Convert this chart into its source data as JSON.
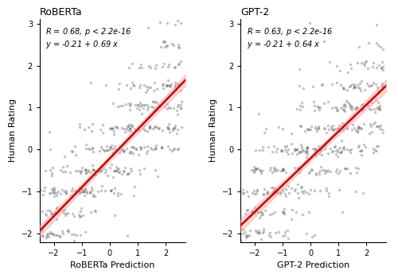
{
  "panel1": {
    "title": "RoBERTa",
    "xlabel": "RoBERTa Prediction",
    "ylabel": "Human Rating",
    "R": 0.68,
    "p": "< 2.2e-16",
    "intercept": -0.21,
    "slope": 0.69,
    "xlim": [
      -2.5,
      2.7
    ],
    "ylim": [
      -2.2,
      3.1
    ],
    "xticks": [
      -2,
      -1,
      0,
      1,
      2
    ],
    "yticks": [
      -2,
      -1,
      0,
      1,
      2,
      3
    ]
  },
  "panel2": {
    "title": "GPT-2",
    "xlabel": "GPT-2 Prediction",
    "ylabel": "Human Rating",
    "R": 0.63,
    "p": "< 2.2e-16",
    "intercept": -0.21,
    "slope": 0.64,
    "xlim": [
      -2.5,
      2.7
    ],
    "ylim": [
      -2.2,
      3.1
    ],
    "xticks": [
      -2,
      -1,
      0,
      1,
      2
    ],
    "yticks": [
      -2,
      -1,
      0,
      1,
      2,
      3
    ]
  },
  "n_points": 500,
  "seed1": 42,
  "seed2": 99,
  "scatter_color": "#555555",
  "scatter_alpha": 0.35,
  "scatter_size": 6,
  "line_color": "#cc0000",
  "ci_color": "#ff9999",
  "ci_alpha": 0.4,
  "background_color": "#ffffff"
}
